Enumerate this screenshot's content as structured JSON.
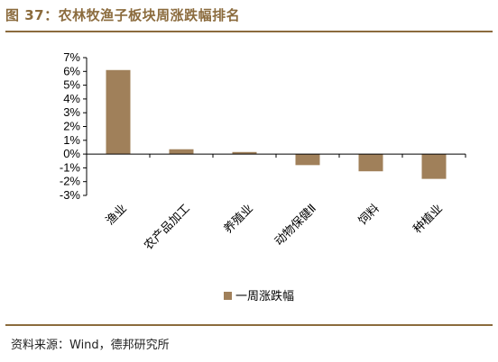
{
  "title": "图 37：农林牧渔子板块周涨跌幅排名",
  "source": "资料来源：Wind，德邦研究所",
  "colors": {
    "accent": "#8b6b3d",
    "bar": "#a0805a"
  },
  "chart_data": {
    "type": "bar",
    "categories": [
      "渔业",
      "农产品加工",
      "养殖业",
      "动物保健Ⅱ",
      "饲料",
      "种植业"
    ],
    "series": [
      {
        "name": "一周涨跌幅",
        "values": [
          6.1,
          0.35,
          0.15,
          -0.8,
          -1.25,
          -1.8
        ]
      }
    ],
    "ylim": [
      -3,
      7
    ],
    "yticks": [
      "7%",
      "6%",
      "5%",
      "4%",
      "3%",
      "2%",
      "1%",
      "0%",
      "-1%",
      "-2%",
      "-3%"
    ],
    "legend_position": "bottom"
  }
}
